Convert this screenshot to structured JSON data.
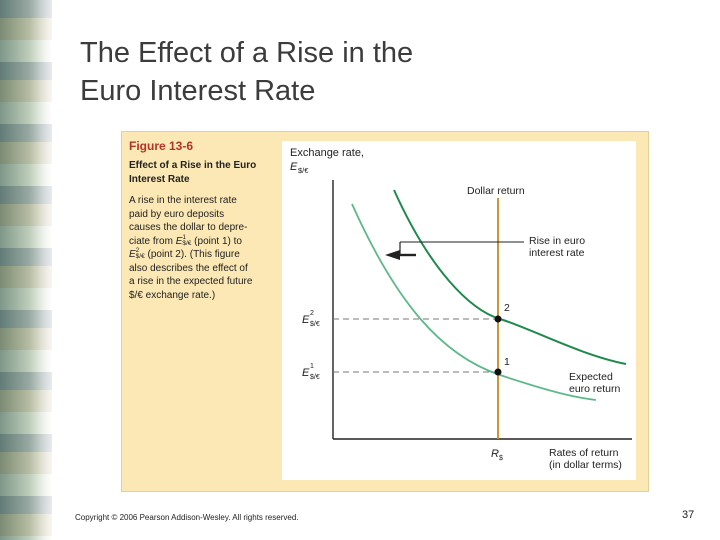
{
  "slide": {
    "title_line1": "The Effect of a Rise in the",
    "title_line2": "Euro Interest Rate",
    "copyright": "Copyright © 2006 Pearson Addison-Wesley. All rights reserved.",
    "page_number": "37"
  },
  "figure": {
    "label": "Figure 13-6",
    "heading_line1": "Effect of a Rise in the Euro",
    "heading_line2": "Interest Rate",
    "desc_line1": "A rise in the interest rate",
    "desc_line2": "paid by euro deposits",
    "desc_line3": "causes the dollar to depre-",
    "desc_line4_pre": "ciate from ",
    "desc_line4_post": " (point 1) to",
    "desc_line5_post": " (point 2). (This figure",
    "desc_line6": "also describes the effect of",
    "desc_line7": "a rise in the expected future",
    "desc_line8": "$/€ exchange rate.)",
    "desc_sym_E": "E",
    "desc_sub": "$/€",
    "desc_sup1": "1",
    "desc_sup2": "2"
  },
  "graph": {
    "y_axis_label": "Exchange rate,",
    "y_axis_symbol": "E",
    "y_axis_sub": "$/€",
    "dollar_return_label": "Dollar return",
    "shift_label_line1": "Rise in euro",
    "shift_label_line2": "interest rate",
    "expected_label_line1": "Expected",
    "expected_label_line2": "euro return",
    "x_axis_label_line1": "Rates of return",
    "x_axis_label_line2": "(in dollar terms)",
    "rs_symbol": "R",
    "rs_sub": "$",
    "e2_symbol": "E",
    "e2_sup": "2",
    "e2_sub": "$/€",
    "e1_symbol": "E",
    "e1_sup": "1",
    "e1_sub": "$/€",
    "point1_label": "1",
    "point2_label": "2",
    "colors": {
      "axis": "#222222",
      "dollar_return": "#c8891c",
      "curve_new": "#1f8a4c",
      "curve_old": "#5db98a",
      "dash": "#777777",
      "arrow": "#222222"
    }
  }
}
